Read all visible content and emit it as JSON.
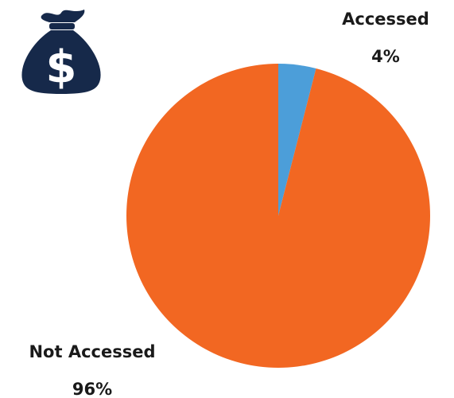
{
  "icon": {
    "name": "money-bag-icon",
    "color": "#16294a"
  },
  "chart_data": {
    "type": "pie",
    "title": "",
    "slices": [
      {
        "label": "Accessed",
        "value": 4,
        "value_label": "4%",
        "color": "#4c9ed9"
      },
      {
        "label": "Not Accessed",
        "value": 96,
        "value_label": "96%",
        "color": "#f26722"
      }
    ],
    "start_angle": "top (12 o'clock), clockwise",
    "legend": "none (direct labels)"
  }
}
